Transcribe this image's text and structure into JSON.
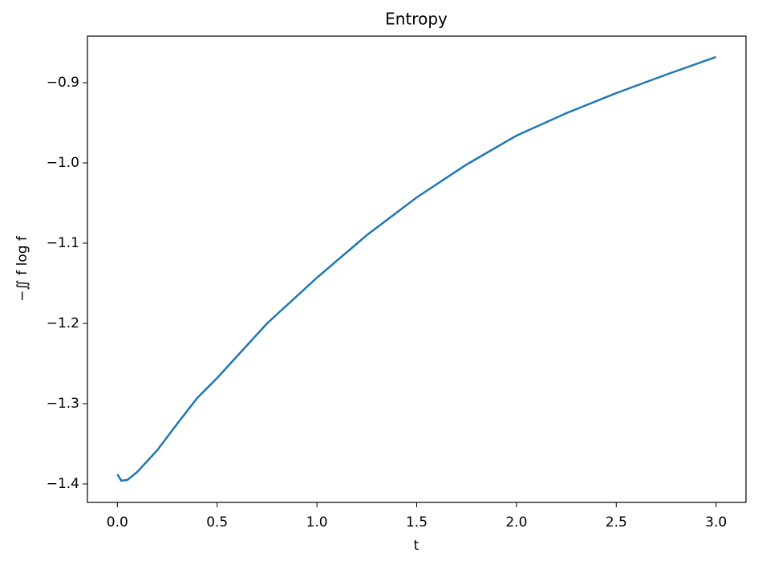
{
  "chart_data": {
    "type": "line",
    "title": "Entropy",
    "xlabel": "t",
    "ylabel": "−∬ f log f",
    "x": [
      0,
      0.02,
      0.05,
      0.1,
      0.2,
      0.3,
      0.4,
      0.5,
      0.75,
      1.0,
      1.25,
      1.5,
      1.75,
      2.0,
      2.25,
      2.5,
      2.75,
      3.0
    ],
    "series": [
      {
        "color": "#1f77b4",
        "values": [
          -1.388,
          -1.396,
          -1.395,
          -1.385,
          -1.358,
          -1.325,
          -1.293,
          -1.268,
          -1.2,
          -1.143,
          -1.09,
          -1.043,
          -1.002,
          -0.966,
          -0.938,
          -0.913,
          -0.89,
          -0.868
        ]
      }
    ],
    "xlim": [
      -0.15,
      3.15
    ],
    "ylim": [
      -1.423,
      -0.842
    ],
    "xticks": [
      {
        "value": 0,
        "label": "0.0"
      },
      0.5,
      {
        "value": 1,
        "label": "1.0"
      },
      1.5,
      {
        "value": 2,
        "label": "2.0"
      },
      2.5,
      {
        "value": 3,
        "label": "3.0"
      }
    ],
    "yticks": [
      {
        "value": -1.4,
        "label": "−1.4"
      },
      {
        "value": -1.3,
        "label": "−1.3"
      },
      {
        "value": -1.2,
        "label": "−1.2"
      },
      {
        "value": -1.1,
        "label": "−1.1"
      },
      {
        "value": -1.0,
        "label": "−1.0"
      },
      {
        "value": -0.9,
        "label": "−0.9"
      }
    ],
    "grid": false
  }
}
